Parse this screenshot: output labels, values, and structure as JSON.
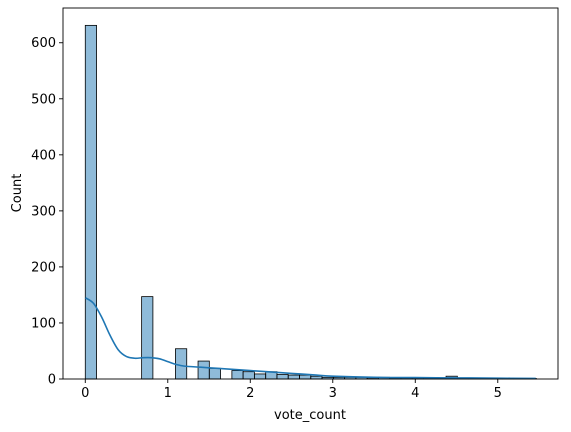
{
  "chart_data": {
    "type": "bar",
    "subtype": "histogram-with-kde",
    "title": "",
    "xlabel": "vote_count",
    "ylabel": "Count",
    "xlim": [
      -0.27,
      5.73
    ],
    "ylim": [
      0,
      662
    ],
    "xticks": [
      0,
      1,
      2,
      3,
      4,
      5
    ],
    "yticks": [
      0,
      100,
      200,
      300,
      400,
      500,
      600
    ],
    "grid": false,
    "legend": "none",
    "bar_color": "#1f77b4",
    "bar_fill_opacity": 0.5,
    "bin_width": 0.1367,
    "bins": [
      {
        "x0": 0.0,
        "count": 631
      },
      {
        "x0": 0.137,
        "count": 0
      },
      {
        "x0": 0.273,
        "count": 0
      },
      {
        "x0": 0.41,
        "count": 0
      },
      {
        "x0": 0.547,
        "count": 0
      },
      {
        "x0": 0.683,
        "count": 147
      },
      {
        "x0": 0.82,
        "count": 0
      },
      {
        "x0": 0.957,
        "count": 0
      },
      {
        "x0": 1.093,
        "count": 54
      },
      {
        "x0": 1.23,
        "count": 0
      },
      {
        "x0": 1.367,
        "count": 32
      },
      {
        "x0": 1.503,
        "count": 19
      },
      {
        "x0": 1.64,
        "count": 0
      },
      {
        "x0": 1.777,
        "count": 15
      },
      {
        "x0": 1.913,
        "count": 13
      },
      {
        "x0": 2.05,
        "count": 9
      },
      {
        "x0": 2.187,
        "count": 13
      },
      {
        "x0": 2.323,
        "count": 8
      },
      {
        "x0": 2.46,
        "count": 7
      },
      {
        "x0": 2.597,
        "count": 7
      },
      {
        "x0": 2.733,
        "count": 5
      },
      {
        "x0": 2.87,
        "count": 3
      },
      {
        "x0": 3.007,
        "count": 3
      },
      {
        "x0": 3.143,
        "count": 3
      },
      {
        "x0": 3.28,
        "count": 3
      },
      {
        "x0": 3.417,
        "count": 2
      },
      {
        "x0": 3.553,
        "count": 3
      },
      {
        "x0": 3.69,
        "count": 2
      },
      {
        "x0": 3.827,
        "count": 2
      },
      {
        "x0": 3.963,
        "count": 2
      },
      {
        "x0": 4.1,
        "count": 2
      },
      {
        "x0": 4.237,
        "count": 1
      },
      {
        "x0": 4.373,
        "count": 5
      },
      {
        "x0": 4.51,
        "count": 1
      },
      {
        "x0": 4.647,
        "count": 1
      },
      {
        "x0": 4.783,
        "count": 1
      },
      {
        "x0": 4.92,
        "count": 1
      },
      {
        "x0": 5.057,
        "count": 1
      },
      {
        "x0": 5.193,
        "count": 1
      },
      {
        "x0": 5.33,
        "count": 1
      }
    ],
    "kde": {
      "x": [
        0,
        0.1,
        0.2,
        0.3,
        0.4,
        0.5,
        0.6,
        0.7,
        0.8,
        0.9,
        1.0,
        1.1,
        1.2,
        1.4,
        1.6,
        1.8,
        2.0,
        2.2,
        2.5,
        2.8,
        3.0,
        3.5,
        4.0,
        4.5,
        5.0,
        5.46
      ],
      "y": [
        145,
        135,
        110,
        78,
        52,
        40,
        37,
        38,
        38,
        36,
        31,
        26,
        23,
        21,
        19,
        17,
        15,
        13,
        10,
        7,
        5,
        3,
        2.5,
        2,
        1.5,
        1
      ]
    }
  }
}
